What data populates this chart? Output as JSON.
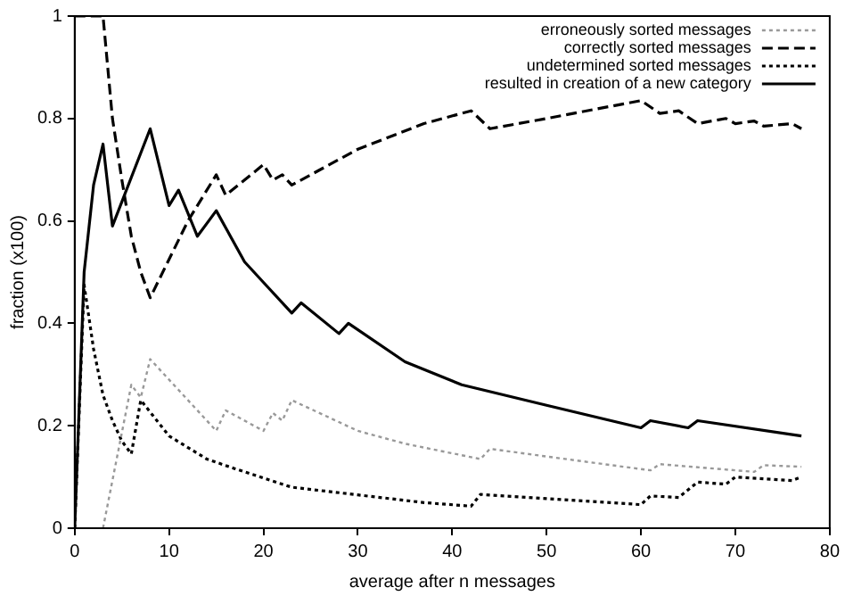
{
  "chart_data": {
    "type": "line",
    "xlabel": "average after n messages",
    "ylabel": "fraction (x100)",
    "xlim": [
      0,
      80
    ],
    "xticks": [
      0,
      10,
      20,
      30,
      40,
      50,
      60,
      70,
      80
    ],
    "ylim": [
      0,
      1
    ],
    "yticks": [
      0,
      0.2,
      0.4,
      0.6,
      0.8,
      1
    ],
    "grid": false,
    "legend": "top right",
    "marker": "none",
    "series": [
      {
        "name": "erroneously sorted messages",
        "color": "#999999",
        "line_style": "dotted",
        "x": [
          3,
          6,
          7,
          8,
          15,
          16,
          20,
          21,
          22,
          23,
          30,
          35,
          43,
          44,
          50,
          61,
          62,
          72,
          73,
          77
        ],
        "values": [
          0,
          0.28,
          0.255,
          0.33,
          0.19,
          0.23,
          0.19,
          0.225,
          0.21,
          0.25,
          0.19,
          0.165,
          0.135,
          0.155,
          0.14,
          0.113,
          0.125,
          0.11,
          0.123,
          0.12
        ]
      },
      {
        "name": "correctly sorted messages",
        "color": "#000000",
        "line_style": "dashed",
        "x": [
          0,
          1,
          2,
          3,
          4,
          5,
          6,
          7,
          8,
          12,
          15,
          16,
          20,
          21,
          22,
          23,
          30,
          37,
          42,
          44,
          50,
          60,
          62,
          64,
          66,
          69,
          70,
          72,
          73,
          76,
          77
        ],
        "values": [
          1,
          1,
          1,
          1,
          0.8,
          0.68,
          0.57,
          0.5,
          0.45,
          0.6,
          0.69,
          0.65,
          0.71,
          0.68,
          0.69,
          0.67,
          0.74,
          0.79,
          0.815,
          0.78,
          0.8,
          0.835,
          0.81,
          0.815,
          0.79,
          0.8,
          0.79,
          0.795,
          0.785,
          0.79,
          0.78
        ]
      },
      {
        "name": "undetermined sorted messages",
        "color": "#000000",
        "line_style": "dotted",
        "x": [
          0,
          1,
          2,
          3,
          4,
          5,
          6,
          7,
          10,
          14,
          17,
          23,
          30,
          37,
          42,
          43,
          60,
          61,
          64,
          66,
          69,
          70,
          76,
          77
        ],
        "values": [
          0,
          0.475,
          0.35,
          0.26,
          0.21,
          0.17,
          0.145,
          0.25,
          0.18,
          0.135,
          0.116,
          0.08,
          0.065,
          0.05,
          0.043,
          0.066,
          0.046,
          0.063,
          0.06,
          0.09,
          0.086,
          0.1,
          0.093,
          0.1
        ]
      },
      {
        "name": "resulted in creation of a new category",
        "color": "#000000",
        "line_style": "solid",
        "x": [
          0,
          1,
          2,
          3,
          4,
          8,
          10,
          11,
          13,
          15,
          18,
          20,
          23,
          24,
          28,
          29,
          35,
          41,
          50,
          60,
          61,
          65,
          66,
          77
        ],
        "values": [
          0,
          0.5,
          0.67,
          0.75,
          0.59,
          0.78,
          0.63,
          0.66,
          0.57,
          0.62,
          0.52,
          0.48,
          0.42,
          0.44,
          0.38,
          0.4,
          0.325,
          0.28,
          0.24,
          0.196,
          0.21,
          0.196,
          0.21,
          0.18
        ]
      }
    ]
  }
}
